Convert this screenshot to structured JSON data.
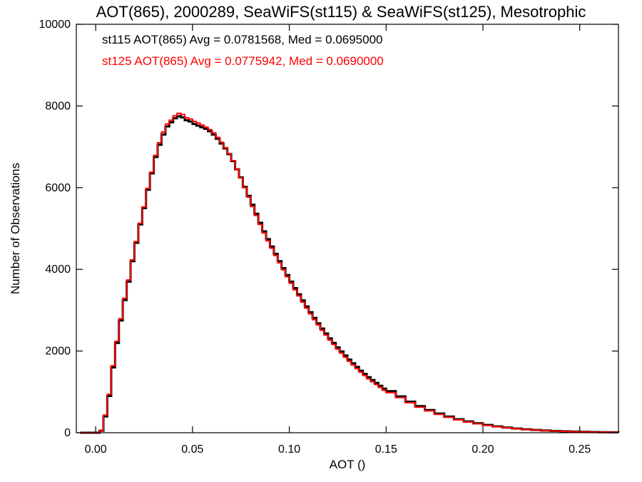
{
  "chart_data": {
    "type": "line",
    "title": "AOT(865), 2000289, SeaWiFS(st115) & SeaWiFS(st125), Mesotrophic",
    "xlabel": "AOT ()",
    "ylabel": "Number of Observations",
    "xlim": [
      -0.01,
      0.27
    ],
    "ylim": [
      0,
      10000
    ],
    "xticks": [
      0.0,
      0.05,
      0.1,
      0.15,
      0.2,
      0.25
    ],
    "xtick_labels": [
      "0.00",
      "0.05",
      "0.10",
      "0.15",
      "0.20",
      "0.25"
    ],
    "yticks": [
      0,
      2000,
      4000,
      6000,
      8000,
      10000
    ],
    "ytick_labels": [
      "0",
      "2000",
      "4000",
      "6000",
      "8000",
      "10000"
    ],
    "grid": false,
    "step": "histogram",
    "legend_position": "top-left",
    "x": [
      -0.008,
      -0.004,
      0.0,
      0.002,
      0.004,
      0.006,
      0.008,
      0.01,
      0.012,
      0.014,
      0.016,
      0.018,
      0.02,
      0.022,
      0.024,
      0.026,
      0.028,
      0.03,
      0.032,
      0.034,
      0.036,
      0.038,
      0.04,
      0.042,
      0.044,
      0.046,
      0.048,
      0.05,
      0.052,
      0.054,
      0.056,
      0.058,
      0.06,
      0.062,
      0.064,
      0.066,
      0.068,
      0.07,
      0.072,
      0.074,
      0.076,
      0.078,
      0.08,
      0.082,
      0.084,
      0.086,
      0.088,
      0.09,
      0.092,
      0.094,
      0.096,
      0.098,
      0.1,
      0.102,
      0.104,
      0.106,
      0.108,
      0.11,
      0.112,
      0.114,
      0.116,
      0.118,
      0.12,
      0.122,
      0.124,
      0.126,
      0.128,
      0.13,
      0.132,
      0.134,
      0.136,
      0.138,
      0.14,
      0.142,
      0.144,
      0.146,
      0.148,
      0.15,
      0.155,
      0.16,
      0.165,
      0.17,
      0.175,
      0.18,
      0.185,
      0.19,
      0.195,
      0.2,
      0.205,
      0.21,
      0.215,
      0.22,
      0.225,
      0.23,
      0.235,
      0.24,
      0.245,
      0.25,
      0.255,
      0.26,
      0.265,
      0.27
    ],
    "series": [
      {
        "name": "st115",
        "color": "#000000",
        "values": [
          0,
          0,
          0,
          50,
          400,
          900,
          1600,
          2200,
          2750,
          3250,
          3700,
          4200,
          4650,
          5100,
          5500,
          5950,
          6350,
          6750,
          7050,
          7300,
          7500,
          7600,
          7700,
          7750,
          7720,
          7650,
          7620,
          7560,
          7520,
          7480,
          7440,
          7380,
          7300,
          7200,
          7080,
          6960,
          6820,
          6650,
          6450,
          6250,
          6020,
          5800,
          5580,
          5360,
          5140,
          4930,
          4740,
          4560,
          4380,
          4200,
          4030,
          3860,
          3700,
          3540,
          3390,
          3240,
          3090,
          2950,
          2810,
          2680,
          2550,
          2430,
          2310,
          2200,
          2090,
          1990,
          1890,
          1790,
          1700,
          1610,
          1520,
          1440,
          1360,
          1290,
          1220,
          1150,
          1080,
          1020,
          890,
          760,
          650,
          555,
          470,
          395,
          330,
          275,
          230,
          190,
          155,
          128,
          104,
          84,
          68,
          55,
          44,
          35,
          28,
          22,
          18,
          14,
          11,
          9
        ]
      },
      {
        "name": "st125",
        "color": "#ff0000",
        "values": [
          0,
          0,
          0,
          60,
          430,
          940,
          1640,
          2240,
          2790,
          3290,
          3740,
          4230,
          4680,
          5130,
          5530,
          5980,
          6380,
          6790,
          7100,
          7360,
          7560,
          7650,
          7760,
          7820,
          7790,
          7710,
          7680,
          7620,
          7580,
          7530,
          7480,
          7420,
          7340,
          7230,
          7110,
          6980,
          6830,
          6660,
          6450,
          6240,
          6000,
          5770,
          5540,
          5320,
          5100,
          4890,
          4700,
          4520,
          4340,
          4160,
          3990,
          3820,
          3660,
          3500,
          3350,
          3200,
          3050,
          2910,
          2770,
          2640,
          2510,
          2390,
          2270,
          2160,
          2050,
          1950,
          1850,
          1750,
          1660,
          1570,
          1480,
          1400,
          1320,
          1250,
          1180,
          1110,
          1040,
          980,
          860,
          735,
          625,
          535,
          450,
          378,
          316,
          263,
          218,
          180,
          147,
          120,
          98,
          79,
          64,
          52,
          42,
          33,
          26,
          20,
          16,
          12,
          10,
          8
        ]
      }
    ],
    "legend": [
      {
        "text": "st115 AOT(865) Avg = 0.0781568, Med = 0.0695000",
        "color": "#000000"
      },
      {
        "text": "st125 AOT(865) Avg = 0.0775942, Med = 0.0690000",
        "color": "#ff0000"
      }
    ]
  }
}
